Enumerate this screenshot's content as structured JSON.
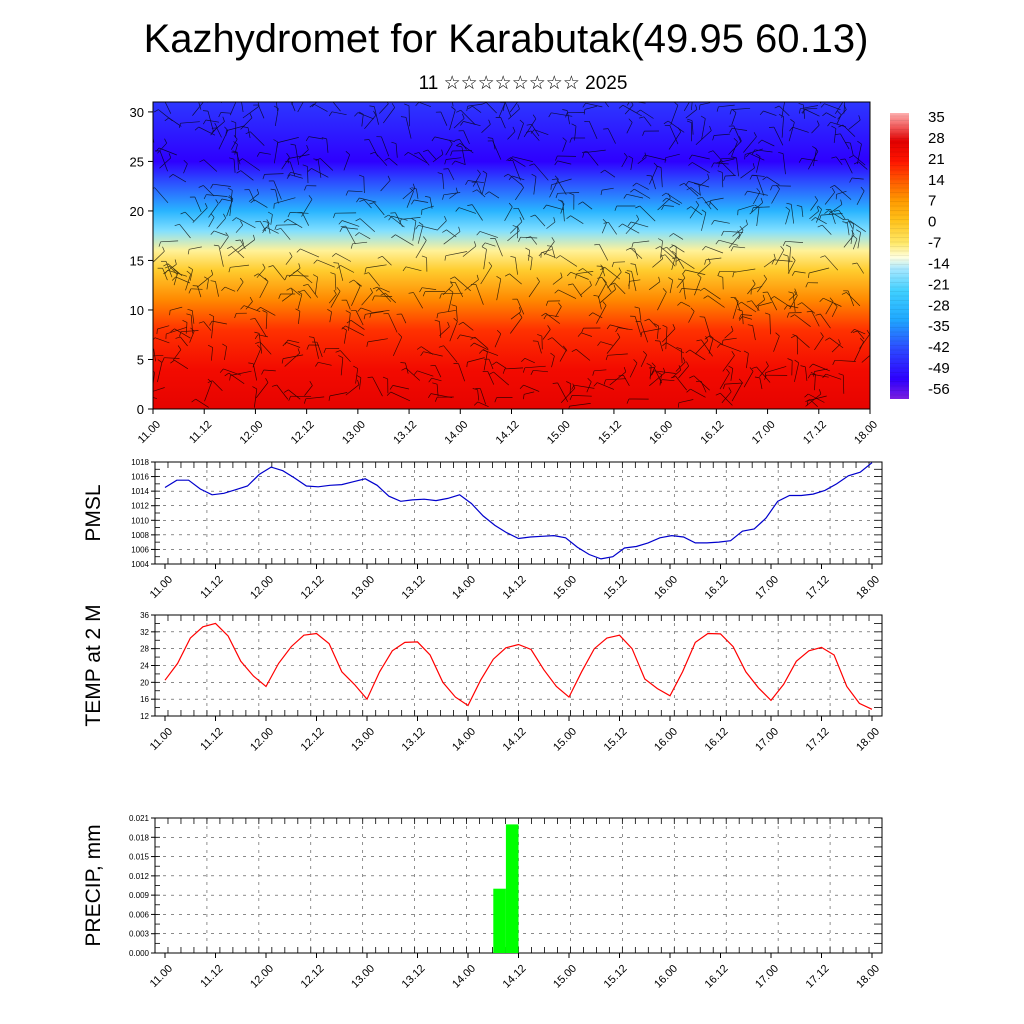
{
  "header": {
    "title": "Kazhydromet for Karabutak(49.95 60.13)",
    "subtitle": "11 ☆☆☆☆☆☆☆☆ 2025"
  },
  "time_axis": {
    "labels": [
      "11.00",
      "11.12",
      "12.00",
      "12.12",
      "13.00",
      "13.12",
      "14.00",
      "14.12",
      "15.00",
      "15.12",
      "16.00",
      "16.12",
      "17.00",
      "17.12",
      "18.00"
    ]
  },
  "chart_data": [
    {
      "type": "heatmap",
      "name": "temperature-cross-section",
      "ylim": [
        0,
        31
      ],
      "yticks": [
        0,
        5,
        10,
        15,
        20,
        25,
        30
      ],
      "colorbar_labels": [
        "35",
        "28",
        "21",
        "14",
        "7",
        "0",
        "-7",
        "-14",
        "-21",
        "-28",
        "-35",
        "-42",
        "-49",
        "-56"
      ],
      "colorbar_range": [
        -63,
        38
      ],
      "rows": [
        {
          "level": 0,
          "value": 27
        },
        {
          "level": 4,
          "value": 24
        },
        {
          "level": 8,
          "value": 18
        },
        {
          "level": 11,
          "value": 9
        },
        {
          "level": 14,
          "value": -2
        },
        {
          "level": 16,
          "value": -10
        },
        {
          "level": 18,
          "value": -20
        },
        {
          "level": 20,
          "value": -32
        },
        {
          "level": 23,
          "value": -45
        },
        {
          "level": 25,
          "value": -56
        },
        {
          "level": 28,
          "value": -52
        },
        {
          "level": 31,
          "value": -48
        }
      ],
      "overlay": "wind barbs"
    },
    {
      "type": "line",
      "name": "pmsl",
      "ylabel": "PMSL",
      "ylim": [
        1004,
        1018
      ],
      "yticks": [
        1004,
        1006,
        1008,
        1010,
        1012,
        1014,
        1016,
        1018
      ],
      "color": "#0000cc",
      "values": [
        1014.5,
        1015.5,
        1015.5,
        1014.3,
        1013.5,
        1013.7,
        1014.2,
        1014.7,
        1016.3,
        1017.3,
        1016.8,
        1015.8,
        1014.7,
        1014.6,
        1014.8,
        1014.9,
        1015.3,
        1015.7,
        1014.8,
        1013.3,
        1012.6,
        1012.8,
        1012.9,
        1012.7,
        1013.0,
        1013.5,
        1012.3,
        1010.6,
        1009.3,
        1008.3,
        1007.5,
        1007.7,
        1007.8,
        1007.9,
        1007.6,
        1006.3,
        1005.3,
        1004.7,
        1005.0,
        1006.2,
        1006.4,
        1006.9,
        1007.6,
        1007.9,
        1007.7,
        1006.9,
        1006.9,
        1007.0,
        1007.2,
        1008.5,
        1008.8,
        1010.3,
        1012.6,
        1013.4,
        1013.4,
        1013.6,
        1014.1,
        1015.0,
        1016.1,
        1016.6,
        1017.9
      ]
    },
    {
      "type": "line",
      "name": "temp-2m",
      "ylabel": "TEMP at 2 M",
      "ylim": [
        12,
        36
      ],
      "yticks": [
        12,
        16,
        20,
        24,
        28,
        32,
        36
      ],
      "color": "#ff0000",
      "values": [
        20.5,
        24.5,
        30.5,
        33.2,
        34.0,
        31.0,
        25.0,
        21.5,
        19.0,
        24.5,
        28.5,
        31.2,
        31.6,
        29.2,
        22.5,
        19.5,
        16.0,
        22.5,
        27.5,
        29.5,
        29.6,
        26.5,
        20.0,
        16.5,
        14.5,
        20.5,
        25.5,
        28.2,
        29.0,
        27.8,
        23.0,
        19.0,
        16.5,
        22.5,
        28.0,
        30.5,
        31.2,
        28.0,
        20.8,
        18.5,
        16.8,
        22.5,
        29.5,
        31.6,
        31.5,
        28.5,
        22.5,
        18.7,
        15.7,
        19.5,
        25.0,
        27.5,
        28.3,
        26.5,
        19.0,
        15.0,
        13.6
      ]
    },
    {
      "type": "bar",
      "name": "precip",
      "ylabel": "PRECIP, mm",
      "ylim": [
        0,
        0.021
      ],
      "yticks": [
        "0.000",
        "0.003",
        "0.006",
        "0.009",
        "0.012",
        "0.015",
        "0.018",
        "0.021"
      ],
      "color": "#00ff00",
      "bars": [
        {
          "start_hour": 78,
          "end_hour": 81,
          "value": 0.01
        },
        {
          "start_hour": 81,
          "end_hour": 84,
          "value": 0.02
        }
      ]
    }
  ]
}
